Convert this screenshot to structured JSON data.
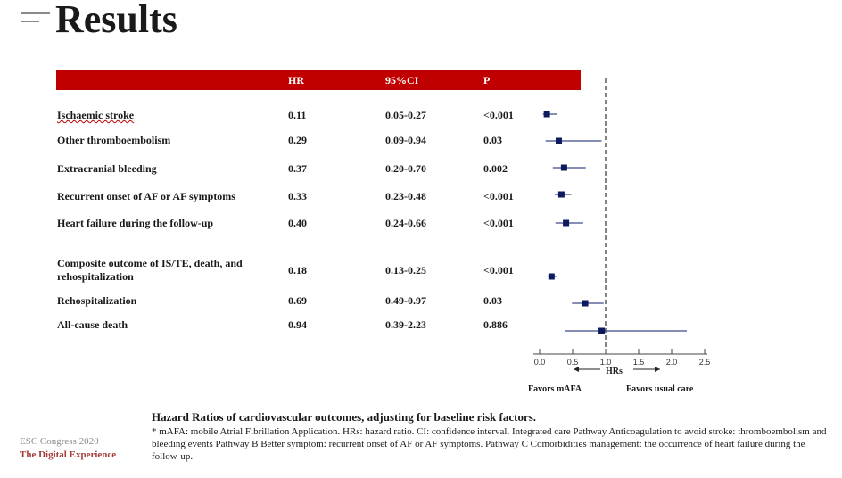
{
  "title": "Results",
  "table": {
    "headers": {
      "hr": "HR",
      "ci": "95%CI",
      "p": "P"
    },
    "rows": [
      {
        "outcome": "Ischaemic stroke",
        "hr": "0.11",
        "ci": "0.05-0.27",
        "p": "<0.001"
      },
      {
        "outcome": "Other thromboembolism",
        "hr": "0.29",
        "ci": "0.09-0.94",
        "p": "0.03"
      },
      {
        "outcome": "Extracranial bleeding",
        "hr": "0.37",
        "ci": "0.20-0.70",
        "p": "0.002"
      },
      {
        "outcome": "Recurrent onset of AF or AF symptoms",
        "hr": "0.33",
        "ci": "0.23-0.48",
        "p": "<0.001"
      },
      {
        "outcome": "Heart failure during the follow-up",
        "hr": "0.40",
        "ci": "0.24-0.66",
        "p": "<0.001"
      },
      {
        "outcome": "Composite outcome of IS/TE, death, and rehospitalization",
        "hr": "0.18",
        "ci": "0.13-0.25",
        "p": "<0.001"
      },
      {
        "outcome": "Rehospitalization",
        "hr": "0.69",
        "ci": "0.49-0.97",
        "p": "0.03"
      },
      {
        "outcome": "All-cause death",
        "hr": "0.94",
        "ci": "0.39-2.23",
        "p": "0.886"
      }
    ]
  },
  "chart_data": {
    "type": "forest",
    "xlabel": "HRs",
    "xlim": [
      0,
      2.5
    ],
    "ticks": [
      "0.0",
      "0.5",
      "1.0",
      "1.5",
      "2.0",
      "2.5"
    ],
    "reference_line": 1.0,
    "reference_style": "dashed",
    "points": [
      {
        "hr": 0.11,
        "lo": 0.05,
        "hi": 0.27
      },
      {
        "hr": 0.29,
        "lo": 0.09,
        "hi": 0.94
      },
      {
        "hr": 0.37,
        "lo": 0.2,
        "hi": 0.7
      },
      {
        "hr": 0.33,
        "lo": 0.23,
        "hi": 0.48
      },
      {
        "hr": 0.4,
        "lo": 0.24,
        "hi": 0.66
      },
      {
        "hr": 0.18,
        "lo": 0.13,
        "hi": 0.25
      },
      {
        "hr": 0.69,
        "lo": 0.49,
        "hi": 0.97
      },
      {
        "hr": 0.94,
        "lo": 0.39,
        "hi": 2.23
      }
    ],
    "favors_left": "Favors mAFA",
    "favors_right": "Favors usual care",
    "colors": {
      "marker": "#0d1a5e",
      "line": "#3d4a8a",
      "header": "#c00000"
    }
  },
  "caption": {
    "title": "Hazard Ratios of cardiovascular outcomes, adjusting for baseline risk factors.",
    "note": "* mAFA: mobile Atrial Fibrillation Application. HRs: hazard ratio. CI: confidence interval. Integrated care Pathway Anticoagulation to avoid stroke: thromboembolism and bleeding events Pathway B Better symptom: recurrent onset of AF or AF symptoms. Pathway C Comorbidities management: the occurrence of heart failure during the follow-up."
  },
  "footer": {
    "line1": "ESC Congress 2020",
    "line2": "The Digital Experience"
  }
}
